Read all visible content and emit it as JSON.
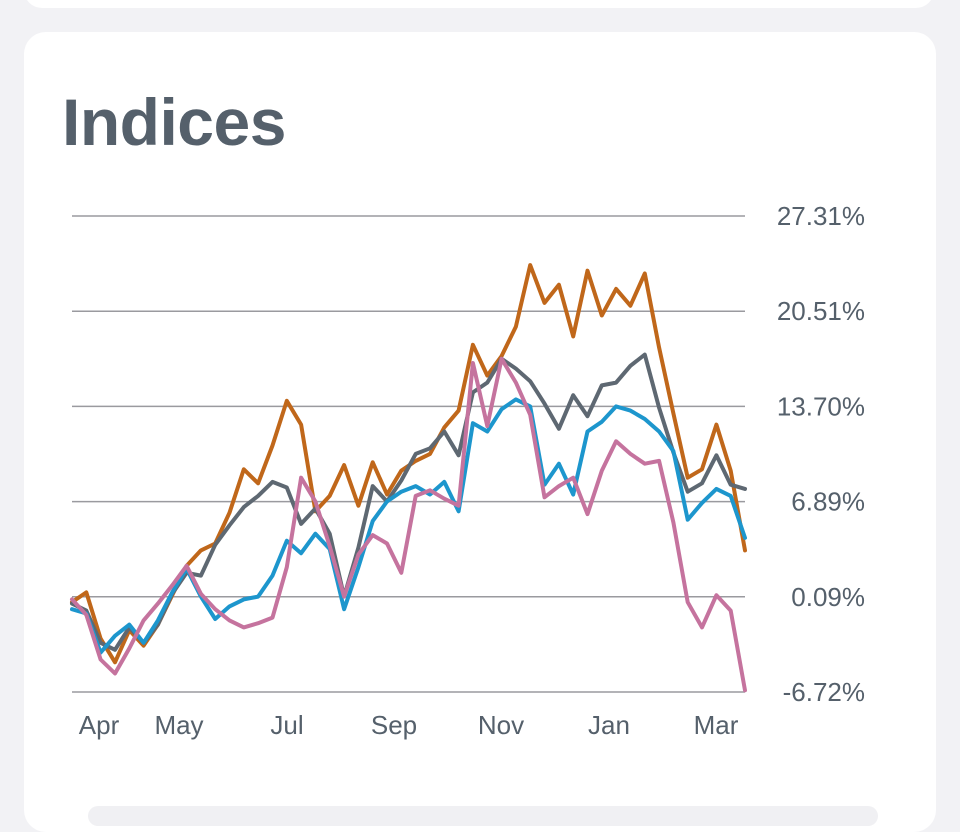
{
  "card": {
    "title": "Indices"
  },
  "chart_data": {
    "type": "line",
    "x_labels": [
      "Apr",
      "May",
      "Jul",
      "Sep",
      "Nov",
      "Jan",
      "Mar"
    ],
    "y_tick_labels": [
      "27.31%",
      "20.51%",
      "13.70%",
      "6.89%",
      "0.09%",
      "-6.72%"
    ],
    "ylim": [
      -6.72,
      27.31
    ],
    "grid": true,
    "series": [
      {
        "color": "#c0671a",
        "values": [
          -0.3,
          0.4,
          -2.9,
          -4.6,
          -2.3,
          -3.4,
          -1.9,
          0.2,
          2.3,
          3.4,
          3.9,
          6.1,
          9.2,
          8.2,
          10.9,
          14.1,
          12.4,
          6.2,
          7.3,
          9.5,
          6.6,
          9.7,
          7.4,
          9.1,
          9.8,
          10.3,
          12.2,
          13.4,
          18.1,
          15.9,
          17.3,
          19.4,
          23.8,
          21.1,
          22.4,
          18.7,
          23.4,
          20.2,
          22.1,
          20.9,
          23.2,
          17.9,
          13.2,
          8.6,
          9.2,
          12.4,
          9.1,
          3.4
        ]
      },
      {
        "color": "#5e6872",
        "values": [
          -0.4,
          -0.9,
          -3.2,
          -3.7,
          -2.1,
          -3.2,
          -1.9,
          0.3,
          1.8,
          1.6,
          3.8,
          5.2,
          6.5,
          7.3,
          8.3,
          7.9,
          5.3,
          6.4,
          4.6,
          0.1,
          3.6,
          8.0,
          6.9,
          8.4,
          10.3,
          10.7,
          11.9,
          10.2,
          14.7,
          15.4,
          17.1,
          16.4,
          15.5,
          13.9,
          12.1,
          14.5,
          13.0,
          15.2,
          15.4,
          16.6,
          17.4,
          13.6,
          10.4,
          7.6,
          8.2,
          10.2,
          8.1,
          7.8
        ]
      },
      {
        "color": "#1d96cd",
        "values": [
          -0.8,
          -1.1,
          -3.9,
          -2.7,
          -1.9,
          -3.2,
          -1.6,
          0.4,
          2.1,
          0.1,
          -1.5,
          -0.6,
          -0.1,
          0.1,
          1.6,
          4.1,
          3.2,
          4.6,
          3.5,
          -0.8,
          2.2,
          5.5,
          6.9,
          7.6,
          8.0,
          7.4,
          8.3,
          6.2,
          12.5,
          11.9,
          13.5,
          14.2,
          13.7,
          8.1,
          9.6,
          7.4,
          11.9,
          12.6,
          13.7,
          13.4,
          12.8,
          11.9,
          10.5,
          5.6,
          6.8,
          7.8,
          7.3,
          4.3
        ]
      },
      {
        "color": "#c5739e",
        "values": [
          -0.1,
          -1.2,
          -4.4,
          -5.4,
          -3.6,
          -1.6,
          -0.4,
          0.9,
          2.3,
          0.3,
          -0.8,
          -1.6,
          -2.1,
          -1.8,
          -1.4,
          2.2,
          8.6,
          6.9,
          3.7,
          0.1,
          3.1,
          4.5,
          3.9,
          1.8,
          7.3,
          7.7,
          7.1,
          6.6,
          16.8,
          12.3,
          17.1,
          15.4,
          13.1,
          7.2,
          8.0,
          8.6,
          6.0,
          9.1,
          11.2,
          10.3,
          9.6,
          9.8,
          5.4,
          -0.3,
          -2.1,
          0.2,
          -0.9,
          -6.6
        ]
      }
    ]
  }
}
